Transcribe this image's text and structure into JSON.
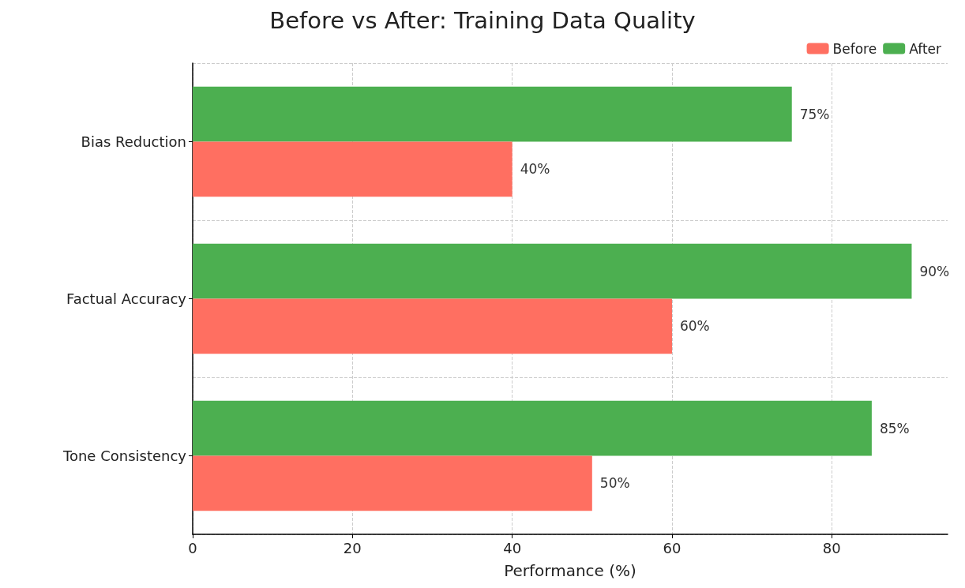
{
  "chart_data": {
    "type": "bar",
    "orientation": "horizontal",
    "title": "Before vs After: Training Data Quality",
    "xlabel": "Performance (%)",
    "categories": [
      "Bias Reduction",
      "Factual Accuracy",
      "Tone Consistency"
    ],
    "series": [
      {
        "name": "Before",
        "color": "#ff6f61",
        "values": [
          40,
          60,
          50
        ],
        "value_labels": [
          "40%",
          "60%",
          "50%"
        ]
      },
      {
        "name": "After",
        "color": "#4caf50",
        "values": [
          75,
          90,
          85
        ],
        "value_labels": [
          "75%",
          "90%",
          "85%"
        ]
      }
    ],
    "xlim": [
      0,
      94.5
    ],
    "xticks": [
      0,
      20,
      40,
      60,
      80
    ],
    "grid": true,
    "legend": "top right"
  }
}
